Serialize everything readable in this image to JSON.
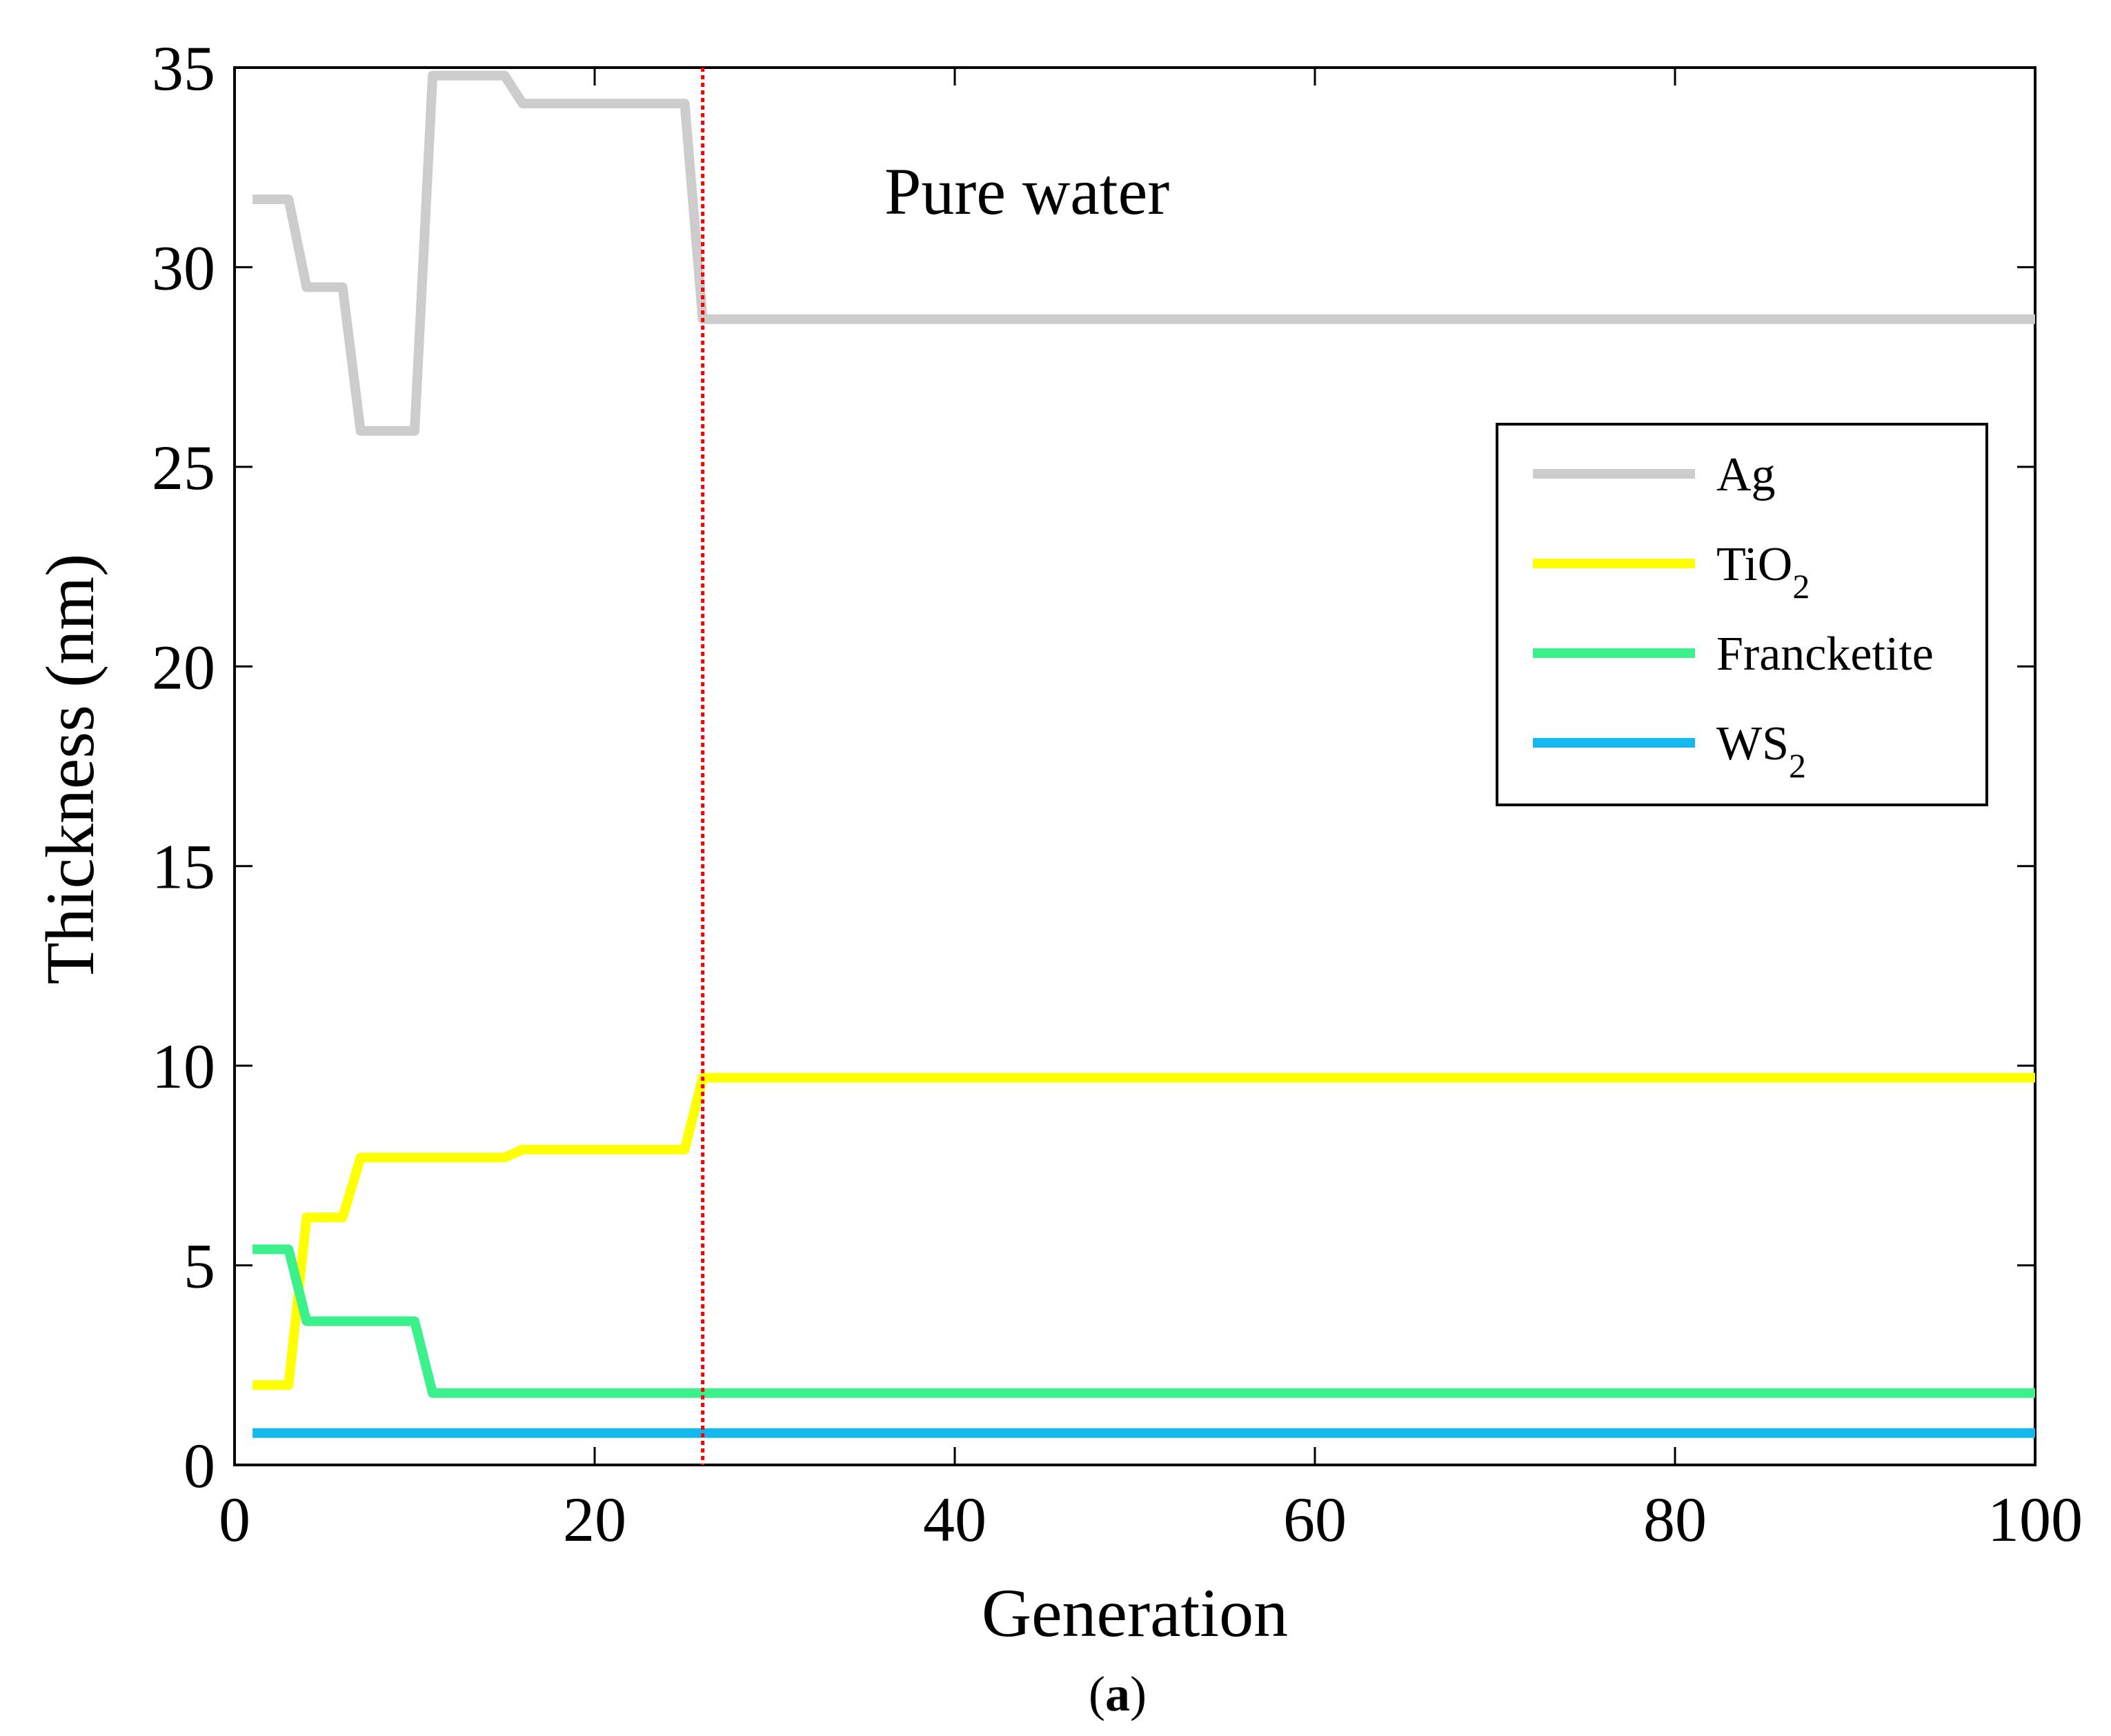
{
  "chart_data": {
    "type": "line",
    "title": "",
    "annotation": "Pure water",
    "xlabel": "Generation",
    "ylabel": "Thickness (nm)",
    "xlim": [
      0,
      100
    ],
    "ylim": [
      0,
      35
    ],
    "xticks": [
      0,
      20,
      40,
      60,
      80,
      100
    ],
    "yticks": [
      0,
      5,
      10,
      15,
      20,
      25,
      30,
      35
    ],
    "grid": false,
    "legend_position": "right",
    "marker_line": {
      "x": 26,
      "color": "#ff0000",
      "style": "dotted"
    },
    "series": [
      {
        "name": "Ag",
        "sub": "",
        "color": "#cccccc",
        "x": [
          1,
          3,
          4,
          6,
          7,
          10,
          11,
          15,
          16,
          25,
          26,
          100
        ],
        "y": [
          31.7,
          31.7,
          29.5,
          29.5,
          25.9,
          25.9,
          34.8,
          34.8,
          34.1,
          34.1,
          28.7,
          28.7
        ]
      },
      {
        "name": "TiO",
        "sub": "2",
        "color": "#ffff00",
        "x": [
          1,
          3,
          4,
          6,
          7,
          10,
          15,
          16,
          25,
          26,
          100
        ],
        "y": [
          2.0,
          2.0,
          6.2,
          6.2,
          7.7,
          7.7,
          7.7,
          7.9,
          7.9,
          9.7,
          9.7
        ]
      },
      {
        "name": "Francketite",
        "sub": "",
        "color": "#3cf08c",
        "x": [
          1,
          3,
          4,
          10,
          11,
          100
        ],
        "y": [
          5.4,
          5.4,
          3.6,
          3.6,
          1.8,
          1.8
        ]
      },
      {
        "name": "WS",
        "sub": "2",
        "color": "#15b8ee",
        "x": [
          1,
          100
        ],
        "y": [
          0.8,
          0.8
        ]
      }
    ]
  },
  "panel_label": "(a)"
}
